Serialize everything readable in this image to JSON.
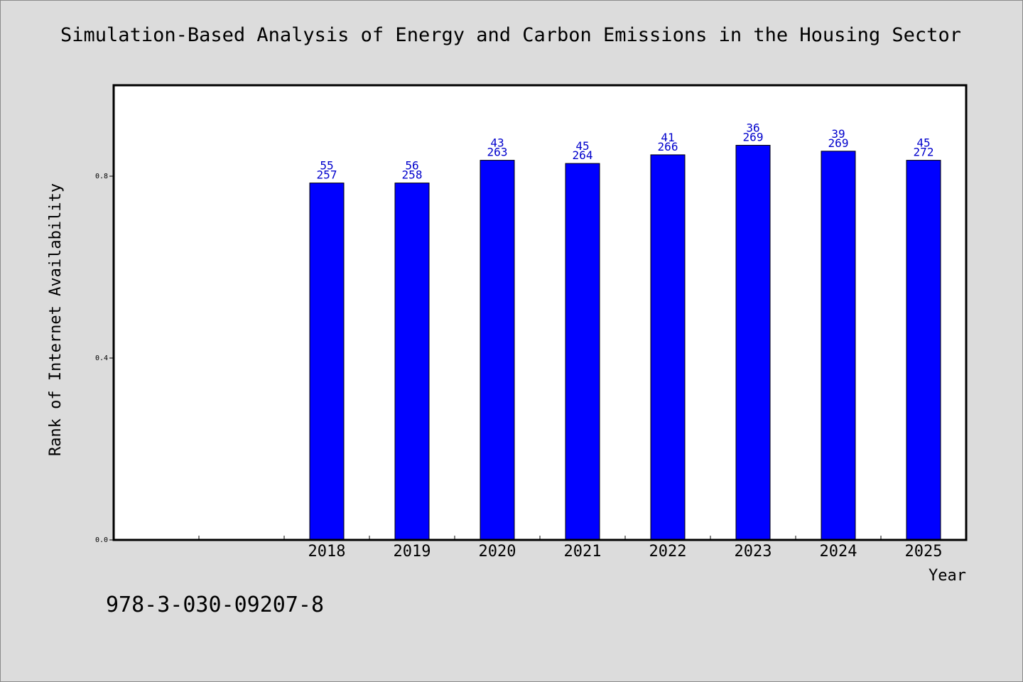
{
  "chart_data": {
    "type": "bar",
    "title": "Simulation-Based Analysis of Energy and Carbon Emissions in the Housing Sector",
    "xlabel": "Year",
    "ylabel": "Rank of Internet Availability",
    "ylim": [
      0.0,
      1.0
    ],
    "yticks": [
      "0.0",
      "0.4",
      "0.8"
    ],
    "categories": [
      "2018",
      "2019",
      "2020",
      "2021",
      "2022",
      "2023",
      "2024",
      "2025"
    ],
    "values": [
      0.785,
      0.785,
      0.835,
      0.828,
      0.847,
      0.868,
      0.855,
      0.835
    ],
    "label_top": [
      "55",
      "56",
      "43",
      "45",
      "41",
      "36",
      "39",
      "45"
    ],
    "label_bottom": [
      "257",
      "258",
      "263",
      "264",
      "266",
      "269",
      "269",
      "272"
    ],
    "grid": false,
    "bar_color": "#0000ff",
    "label_color": "#0000cc"
  },
  "footer": {
    "code": "978-3-030-09207-8"
  }
}
